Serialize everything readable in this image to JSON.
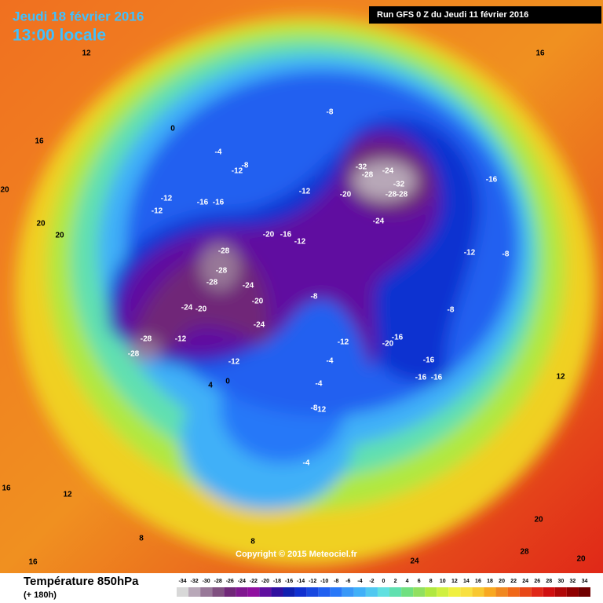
{
  "header": {
    "date": "Jeudi 18 février 2016",
    "time": "13:00 locale",
    "run": "Run GFS 0 Z du Jeudi 11 février 2016"
  },
  "copyright": "Copyright © 2015 Meteociel.fr",
  "footer": {
    "title": "Température 850hPa",
    "lead": "(+ 180h)"
  },
  "legend": {
    "values": [
      -34,
      -32,
      -30,
      -28,
      -26,
      -24,
      -22,
      -20,
      -18,
      -16,
      -14,
      -12,
      -10,
      -8,
      -6,
      -4,
      -2,
      0,
      2,
      4,
      6,
      8,
      10,
      12,
      14,
      16,
      18,
      20,
      22,
      24,
      26,
      28,
      30,
      32,
      34
    ],
    "colors": [
      "#d8d8d8",
      "#b8a8b8",
      "#987898",
      "#805080",
      "#702878",
      "#801890",
      "#9010a0",
      "#6010a0",
      "#3010a0",
      "#1020b0",
      "#1030d0",
      "#1848e0",
      "#2060f0",
      "#2878f8",
      "#3898f8",
      "#40b0f8",
      "#50c8f0",
      "#60e0e0",
      "#60e0b0",
      "#70e080",
      "#90e060",
      "#b0e840",
      "#d0f040",
      "#f0f040",
      "#f8e040",
      "#f8c830",
      "#f8a820",
      "#f08820",
      "#f06818",
      "#e84818",
      "#e02818",
      "#d01010",
      "#b00808",
      "#900000",
      "#700000"
    ]
  },
  "map_labels": [
    "-8",
    "-32",
    "-28",
    "-24",
    "-32",
    "-28",
    "-28",
    "-20",
    "-24",
    "-16",
    "-12",
    "-12",
    "-12",
    "-16",
    "-16",
    "-20",
    "-16",
    "-12",
    "-28",
    "-28",
    "-28",
    "-24",
    "-20",
    "-24",
    "-20",
    "-24",
    "-12",
    "-28",
    "-28",
    "-12",
    "-8",
    "-12",
    "-20",
    "-16",
    "-16",
    "-16",
    "-16",
    "-8",
    "-12",
    "-8",
    "-4",
    "-8",
    "-12",
    "0",
    "0",
    "4",
    "-4",
    "-4",
    "-8",
    "-12",
    "-4",
    "8",
    "12",
    "16",
    "16",
    "20",
    "20",
    "20",
    "12",
    "20",
    "24",
    "28",
    "20",
    "16",
    "12",
    "8",
    "16"
  ]
}
